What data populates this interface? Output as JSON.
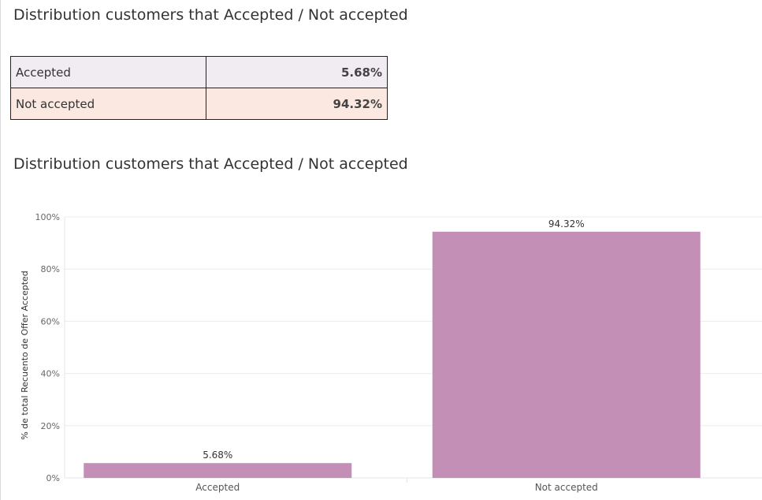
{
  "header": {
    "title": "Distribution customers that Accepted / Not accepted"
  },
  "summary_table": {
    "rows": [
      {
        "label": "Accepted",
        "value": "5.68%",
        "color": "#f1ebf2"
      },
      {
        "label": "Not accepted",
        "value": "94.32%",
        "color": "#fbe9e1"
      }
    ]
  },
  "chart_data": {
    "type": "bar",
    "title": "Distribution customers that Accepted / Not accepted",
    "categories": [
      "Accepted",
      "Not accepted"
    ],
    "values": [
      5.68,
      94.32
    ],
    "data_labels": [
      "5.68%",
      "94.32%"
    ],
    "ylabel": "% de total Recuento de Offer Accepted",
    "xlabel": "",
    "ylim": [
      0,
      100
    ],
    "yticks": [
      0,
      20,
      40,
      60,
      80,
      100
    ],
    "ytick_labels": [
      "0%",
      "20%",
      "40%",
      "60%",
      "80%",
      "100%"
    ],
    "bar_color": "#c38fb6",
    "grid": true
  }
}
